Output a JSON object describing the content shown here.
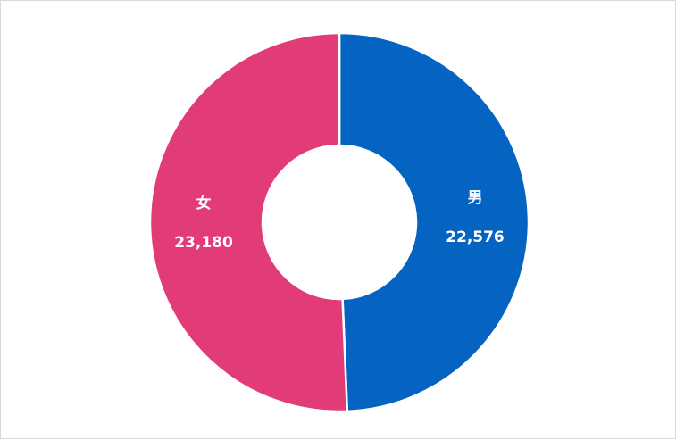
{
  "chart_data": {
    "type": "pie",
    "donut": true,
    "title": "",
    "legend": "none",
    "categories": [
      "男",
      "女"
    ],
    "values": [
      22576,
      23180
    ],
    "value_labels": [
      "22,576",
      "23,180"
    ],
    "colors": [
      "#0563c1",
      "#e23c78"
    ]
  }
}
